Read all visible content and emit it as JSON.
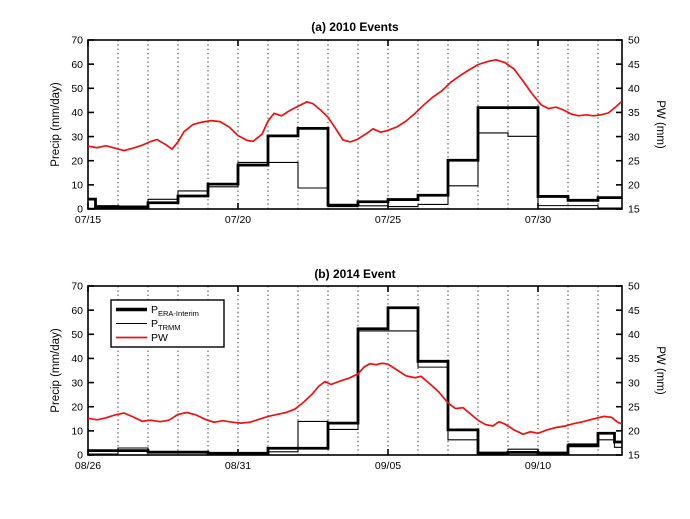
{
  "figure": {
    "background": "#ffffff",
    "colors": {
      "axis": "#000000",
      "grid": "#3a3a3a",
      "era": "#000000",
      "trmm": "#000000",
      "pw": "#ee1111"
    }
  },
  "chart_data": [
    {
      "type": "line",
      "panel": "a",
      "title": "(a) 2010 Events",
      "ylabel": "Precip (mm/day)",
      "ylabel_right": "PW (mm)",
      "ylim": [
        0,
        70
      ],
      "ylim_right": [
        15,
        50
      ],
      "yticks": [
        0,
        10,
        20,
        30,
        40,
        50,
        60,
        70
      ],
      "yticks_right": [
        15,
        20,
        25,
        30,
        35,
        40,
        45,
        50
      ],
      "xlim_days": [
        0,
        17.8
      ],
      "grid": "daily-dotted",
      "xticks": [
        {
          "day": 0,
          "label": "07/15"
        },
        {
          "day": 5,
          "label": "07/20"
        },
        {
          "day": 10,
          "label": "07/25"
        },
        {
          "day": 15,
          "label": "07/30"
        }
      ],
      "series": [
        {
          "name": "P_ERA-Interim",
          "type": "step",
          "axis": "left",
          "width": 2.8,
          "points": [
            [
              0,
              4.1
            ],
            [
              0.25,
              1.0
            ],
            [
              1,
              0.6
            ],
            [
              2,
              2.6
            ],
            [
              3,
              5.4
            ],
            [
              4,
              10.3
            ],
            [
              5,
              18.2
            ],
            [
              6,
              30.3
            ],
            [
              7,
              33.4
            ],
            [
              8,
              1.6
            ],
            [
              9,
              3.0
            ],
            [
              10,
              3.9
            ],
            [
              11,
              5.7
            ],
            [
              12,
              20.2
            ],
            [
              13,
              42.0
            ],
            [
              15,
              5.2
            ],
            [
              16,
              3.6
            ],
            [
              17,
              4.7
            ]
          ]
        },
        {
          "name": "P_TRMM",
          "type": "step",
          "axis": "left",
          "width": 1.1,
          "points": [
            [
              0,
              0.3
            ],
            [
              1,
              1.2
            ],
            [
              2,
              4.0
            ],
            [
              3,
              7.5
            ],
            [
              4,
              9.2
            ],
            [
              5,
              19.3
            ],
            [
              6,
              19.3
            ],
            [
              7,
              8.7
            ],
            [
              8,
              1.0
            ],
            [
              9,
              1.3
            ],
            [
              10,
              1.0
            ],
            [
              11,
              1.9
            ],
            [
              12,
              9.6
            ],
            [
              13,
              31.5
            ],
            [
              14,
              30.1
            ],
            [
              15,
              1.4
            ],
            [
              16,
              1.4
            ],
            [
              17,
              0.4
            ]
          ]
        },
        {
          "name": "PW",
          "type": "line",
          "axis": "right",
          "width": 1.7,
          "points": [
            [
              0,
              28.0
            ],
            [
              0.3,
              27.7
            ],
            [
              0.6,
              28.1
            ],
            [
              0.9,
              27.6
            ],
            [
              1.2,
              27.1
            ],
            [
              1.5,
              27.6
            ],
            [
              1.8,
              28.2
            ],
            [
              2.1,
              29.0
            ],
            [
              2.3,
              29.4
            ],
            [
              2.6,
              28.3
            ],
            [
              2.8,
              27.4
            ],
            [
              3.0,
              28.9
            ],
            [
              3.2,
              31.0
            ],
            [
              3.5,
              32.5
            ],
            [
              3.8,
              33.0
            ],
            [
              4.1,
              33.3
            ],
            [
              4.4,
              33.1
            ],
            [
              4.7,
              32.0
            ],
            [
              5.0,
              30.2
            ],
            [
              5.3,
              29.2
            ],
            [
              5.5,
              29.0
            ],
            [
              5.8,
              30.5
            ],
            [
              6.0,
              33.2
            ],
            [
              6.2,
              34.8
            ],
            [
              6.45,
              34.3
            ],
            [
              6.7,
              35.3
            ],
            [
              7.0,
              36.3
            ],
            [
              7.3,
              37.2
            ],
            [
              7.5,
              36.8
            ],
            [
              7.75,
              35.5
            ],
            [
              8.0,
              34.0
            ],
            [
              8.25,
              31.7
            ],
            [
              8.5,
              29.3
            ],
            [
              8.75,
              28.9
            ],
            [
              9.0,
              29.5
            ],
            [
              9.3,
              30.7
            ],
            [
              9.5,
              31.6
            ],
            [
              9.75,
              30.9
            ],
            [
              10.0,
              31.3
            ],
            [
              10.3,
              32.0
            ],
            [
              10.6,
              33.2
            ],
            [
              10.9,
              34.8
            ],
            [
              11.2,
              36.6
            ],
            [
              11.5,
              38.2
            ],
            [
              11.8,
              39.5
            ],
            [
              12.1,
              41.3
            ],
            [
              12.4,
              42.6
            ],
            [
              12.7,
              43.8
            ],
            [
              13.0,
              44.9
            ],
            [
              13.3,
              45.5
            ],
            [
              13.6,
              45.9
            ],
            [
              13.9,
              45.3
            ],
            [
              14.2,
              44.0
            ],
            [
              14.5,
              41.5
            ],
            [
              14.8,
              38.9
            ],
            [
              15.1,
              36.6
            ],
            [
              15.35,
              35.8
            ],
            [
              15.6,
              36.1
            ],
            [
              15.85,
              35.5
            ],
            [
              16.1,
              34.7
            ],
            [
              16.35,
              34.3
            ],
            [
              16.6,
              34.5
            ],
            [
              16.85,
              34.3
            ],
            [
              17.1,
              34.5
            ],
            [
              17.35,
              34.9
            ],
            [
              17.6,
              36.2
            ],
            [
              17.8,
              37.3
            ]
          ]
        }
      ]
    },
    {
      "type": "line",
      "panel": "b",
      "title": "(b) 2014 Event",
      "ylabel": "Precip (mm/day)",
      "ylabel_right": "PW (mm)",
      "ylim": [
        0,
        70
      ],
      "ylim_right": [
        15,
        50
      ],
      "yticks": [
        0,
        10,
        20,
        30,
        40,
        50,
        60,
        70
      ],
      "yticks_right": [
        15,
        20,
        25,
        30,
        35,
        40,
        45,
        50
      ],
      "xlim_days": [
        0,
        17.8
      ],
      "grid": "daily-dotted",
      "xticks": [
        {
          "day": 0,
          "label": "08/26"
        },
        {
          "day": 5,
          "label": "08/31"
        },
        {
          "day": 10,
          "label": "09/05"
        },
        {
          "day": 15,
          "label": "09/10"
        }
      ],
      "legend": {
        "position": "upper-left",
        "entries": [
          {
            "label": "P",
            "sub": "ERA-Interim",
            "series": "P_ERA-Interim"
          },
          {
            "label": "P",
            "sub": "TRMM",
            "series": "P_TRMM"
          },
          {
            "label": "PW",
            "sub": "",
            "series": "PW"
          }
        ]
      },
      "series": [
        {
          "name": "P_ERA-Interim",
          "type": "step",
          "axis": "left",
          "width": 2.8,
          "points": [
            [
              0,
              1.8
            ],
            [
              1,
              1.8
            ],
            [
              2,
              1.2
            ],
            [
              3,
              1.2
            ],
            [
              4,
              0.7
            ],
            [
              5,
              0.7
            ],
            [
              6,
              2.8
            ],
            [
              7,
              2.8
            ],
            [
              8,
              13.2
            ],
            [
              9,
              52.3
            ],
            [
              10,
              61.0
            ],
            [
              11,
              38.8
            ],
            [
              12,
              10.4
            ],
            [
              13,
              0.8
            ],
            [
              14,
              1.1
            ],
            [
              15,
              0.8
            ],
            [
              16,
              3.8
            ],
            [
              17,
              9.0
            ],
            [
              17.55,
              5.4
            ]
          ]
        },
        {
          "name": "P_TRMM",
          "type": "step",
          "axis": "left",
          "width": 1.1,
          "points": [
            [
              0,
              0.4
            ],
            [
              1,
              2.9
            ],
            [
              2,
              0.8
            ],
            [
              3,
              0.8
            ],
            [
              4,
              0.3
            ],
            [
              5,
              0.3
            ],
            [
              6,
              1.3
            ],
            [
              7,
              13.9
            ],
            [
              8,
              10.6
            ],
            [
              9,
              51.4
            ],
            [
              10,
              51.4
            ],
            [
              11,
              36.4
            ],
            [
              12,
              6.3
            ],
            [
              13,
              0.3
            ],
            [
              14,
              2.4
            ],
            [
              15,
              0.5
            ],
            [
              16,
              4.6
            ],
            [
              17,
              6.3
            ],
            [
              17.55,
              3.2
            ]
          ]
        },
        {
          "name": "PW",
          "type": "line",
          "axis": "right",
          "width": 1.7,
          "points": [
            [
              0,
              22.6
            ],
            [
              0.3,
              22.3
            ],
            [
              0.6,
              22.7
            ],
            [
              0.9,
              23.3
            ],
            [
              1.2,
              23.7
            ],
            [
              1.5,
              22.9
            ],
            [
              1.8,
              22.0
            ],
            [
              2.1,
              22.2
            ],
            [
              2.4,
              21.9
            ],
            [
              2.7,
              22.2
            ],
            [
              3.0,
              23.4
            ],
            [
              3.3,
              23.8
            ],
            [
              3.6,
              23.3
            ],
            [
              3.9,
              22.4
            ],
            [
              4.2,
              21.8
            ],
            [
              4.5,
              22.1
            ],
            [
              4.8,
              21.8
            ],
            [
              5.1,
              21.6
            ],
            [
              5.4,
              21.8
            ],
            [
              5.7,
              22.4
            ],
            [
              6.0,
              23.0
            ],
            [
              6.3,
              23.4
            ],
            [
              6.6,
              23.8
            ],
            [
              6.9,
              24.5
            ],
            [
              7.2,
              26.0
            ],
            [
              7.5,
              27.8
            ],
            [
              7.7,
              29.3
            ],
            [
              7.9,
              30.2
            ],
            [
              8.1,
              29.6
            ],
            [
              8.4,
              30.3
            ],
            [
              8.7,
              30.9
            ],
            [
              9.0,
              31.8
            ],
            [
              9.2,
              33.2
            ],
            [
              9.4,
              33.9
            ],
            [
              9.6,
              33.7
            ],
            [
              9.8,
              34.0
            ],
            [
              10.0,
              33.8
            ],
            [
              10.3,
              32.6
            ],
            [
              10.6,
              31.4
            ],
            [
              10.9,
              31.0
            ],
            [
              11.1,
              31.3
            ],
            [
              11.4,
              29.7
            ],
            [
              11.7,
              28.0
            ],
            [
              12.0,
              25.8
            ],
            [
              12.25,
              24.6
            ],
            [
              12.5,
              24.8
            ],
            [
              12.75,
              23.5
            ],
            [
              13.0,
              22.2
            ],
            [
              13.25,
              21.3
            ],
            [
              13.5,
              21.0
            ],
            [
              13.7,
              21.9
            ],
            [
              13.9,
              21.4
            ],
            [
              14.2,
              20.2
            ],
            [
              14.5,
              19.3
            ],
            [
              14.75,
              19.8
            ],
            [
              15.0,
              19.5
            ],
            [
              15.3,
              20.2
            ],
            [
              15.6,
              20.7
            ],
            [
              15.9,
              21.0
            ],
            [
              16.2,
              21.5
            ],
            [
              16.5,
              21.9
            ],
            [
              16.8,
              22.4
            ],
            [
              17.0,
              22.7
            ],
            [
              17.2,
              23.0
            ],
            [
              17.45,
              22.8
            ],
            [
              17.65,
              21.8
            ],
            [
              17.8,
              21.4
            ]
          ]
        }
      ]
    }
  ]
}
